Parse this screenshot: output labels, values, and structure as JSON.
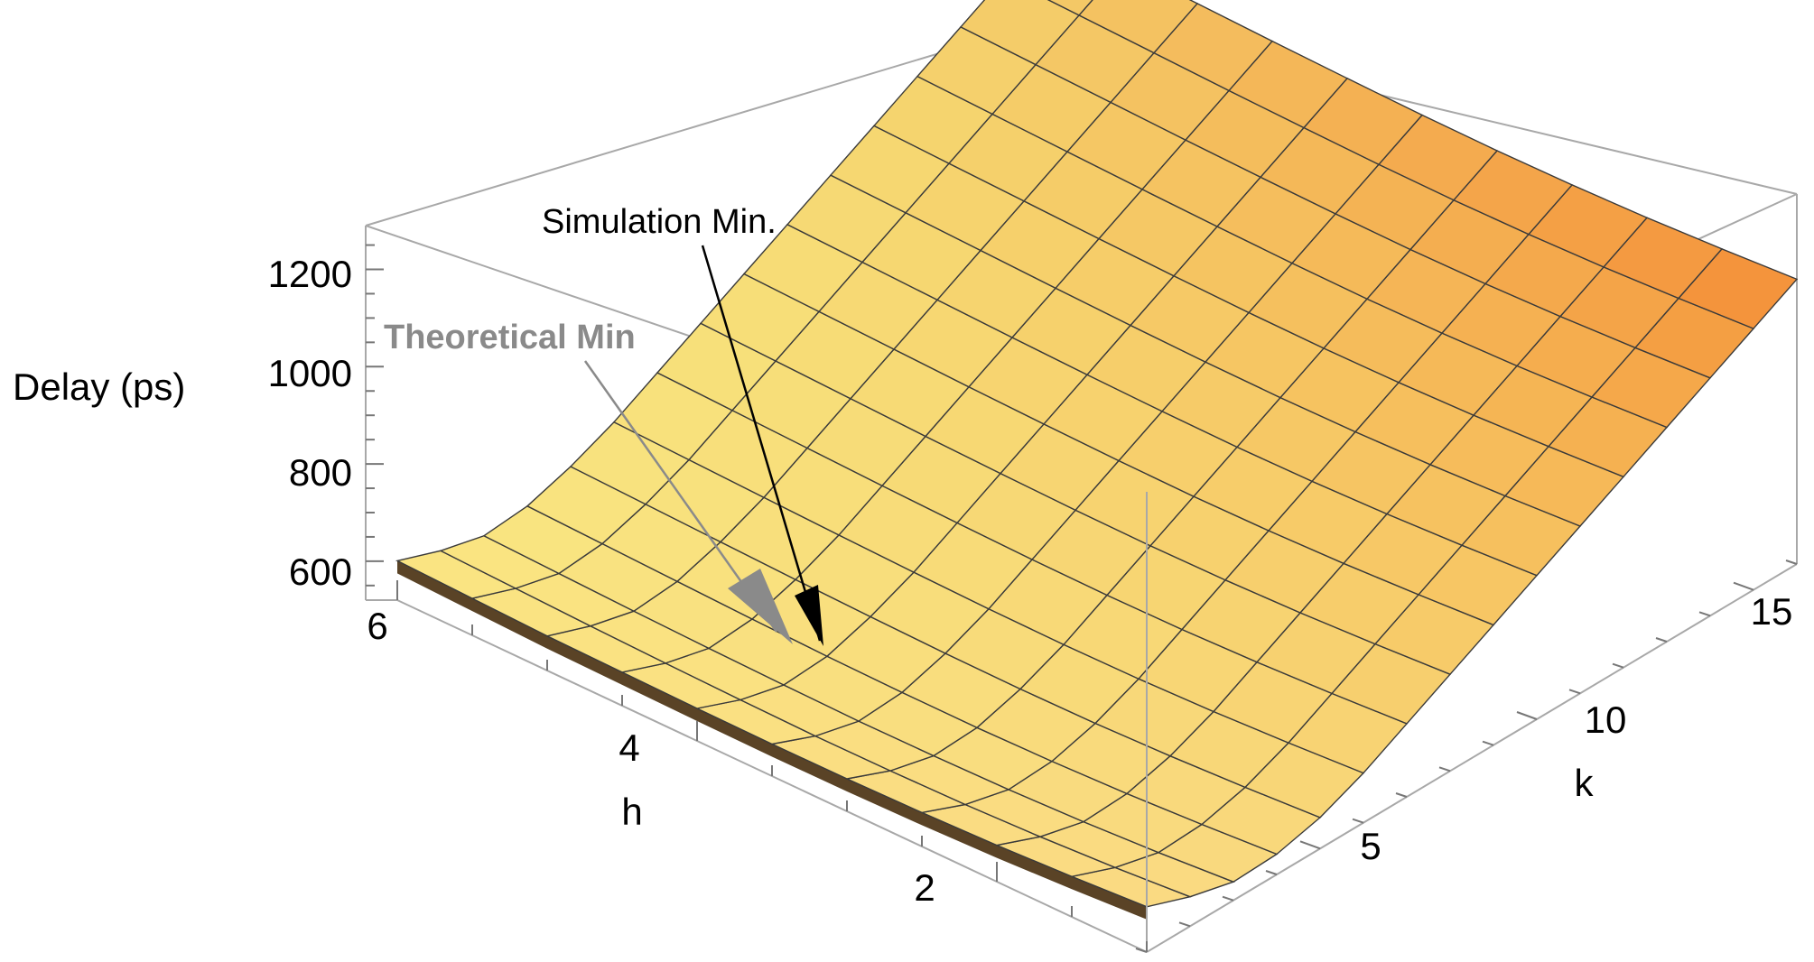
{
  "chart_data": {
    "type": "surface3d",
    "zlabel": "Delay (ps)",
    "xlabel": "h",
    "ylabel": "k",
    "h_ticks": [
      "2",
      "4",
      "6"
    ],
    "k_ticks": [
      "5",
      "10",
      "15"
    ],
    "z_ticks": [
      "600",
      "800",
      "1000",
      "1200"
    ],
    "h_range": [
      1,
      6
    ],
    "k_range": [
      1,
      16
    ],
    "z_range": [
      520,
      1290
    ],
    "grid": false,
    "box": true,
    "surface_color": "#f6de6a",
    "surface_edge_color": "#f4a14a",
    "mesh_color": "#3a3a3a",
    "h_values": [
      6.0,
      5.5,
      5.0,
      4.5,
      4.0,
      3.5,
      3.0,
      2.5,
      2.0,
      1.5,
      1.0
    ],
    "k_values": [
      1,
      2,
      3,
      4,
      5,
      6,
      7,
      8,
      9,
      10,
      11,
      12,
      13,
      14,
      15,
      16
    ],
    "delay_ps": [
      [
        600,
        580,
        570,
        590,
        630,
        680,
        740,
        800,
        860,
        920,
        980,
        1040,
        1100,
        1160,
        1220,
        1280
      ],
      [
        595,
        575,
        565,
        585,
        625,
        675,
        735,
        795,
        855,
        915,
        975,
        1035,
        1095,
        1155,
        1215,
        1275
      ],
      [
        590,
        570,
        560,
        580,
        620,
        670,
        730,
        790,
        850,
        910,
        970,
        1030,
        1090,
        1150,
        1210,
        1270
      ],
      [
        588,
        566,
        556,
        575,
        615,
        665,
        725,
        785,
        845,
        905,
        965,
        1025,
        1085,
        1145,
        1205,
        1265
      ],
      [
        586,
        563,
        553,
        571,
        611,
        661,
        721,
        781,
        841,
        901,
        961,
        1021,
        1081,
        1141,
        1201,
        1261
      ],
      [
        585,
        561,
        551,
        569,
        608,
        658,
        718,
        778,
        838,
        898,
        958,
        1018,
        1078,
        1138,
        1198,
        1258
      ],
      [
        586,
        562,
        552,
        569,
        607,
        657,
        717,
        777,
        837,
        897,
        957,
        1017,
        1077,
        1137,
        1197,
        1257
      ],
      [
        589,
        565,
        555,
        572,
        609,
        659,
        719,
        779,
        839,
        899,
        959,
        1019,
        1079,
        1139,
        1199,
        1259
      ],
      [
        594,
        571,
        561,
        578,
        614,
        664,
        724,
        784,
        844,
        904,
        964,
        1024,
        1084,
        1144,
        1204,
        1264
      ],
      [
        602,
        580,
        570,
        587,
        622,
        672,
        732,
        792,
        852,
        912,
        972,
        1032,
        1092,
        1152,
        1212,
        1272
      ],
      [
        612,
        592,
        582,
        598,
        632,
        682,
        742,
        802,
        862,
        922,
        982,
        1042,
        1102,
        1162,
        1222,
        1282
      ]
    ],
    "annotations": [
      {
        "text": "Simulation Min.",
        "color": "#000000",
        "h": 4.2,
        "k": 4.0
      },
      {
        "text": "Theoretical Min",
        "color": "#8a8a8a",
        "h": 4.4,
        "k": 3.4
      }
    ]
  }
}
